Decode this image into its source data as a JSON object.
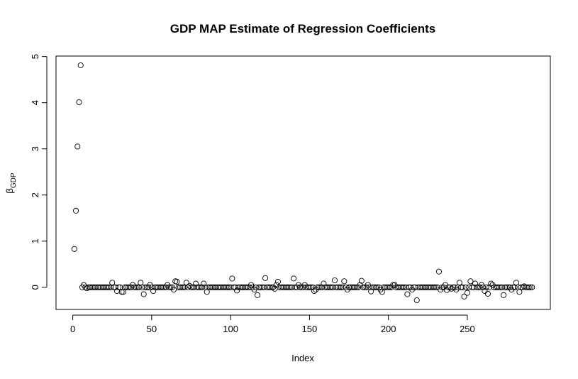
{
  "chart_data": {
    "type": "scatter",
    "title": "GDP MAP Estimate of Regression Coefficients",
    "x_label": "Index",
    "y_label": "β",
    "y_label_subscript": "GDP",
    "color": "#000000",
    "x": [
      1,
      2,
      3,
      4,
      5,
      6,
      7,
      8,
      9,
      10,
      11,
      12,
      13,
      14,
      15,
      16,
      17,
      18,
      19,
      20,
      21,
      22,
      23,
      24,
      25,
      26,
      27,
      28,
      29,
      30,
      31,
      32,
      33,
      34,
      35,
      36,
      37,
      38,
      39,
      40,
      41,
      42,
      43,
      44,
      45,
      46,
      47,
      48,
      49,
      50,
      51,
      52,
      53,
      54,
      55,
      56,
      57,
      58,
      59,
      60,
      61,
      62,
      63,
      64,
      65,
      66,
      67,
      68,
      69,
      70,
      71,
      72,
      73,
      74,
      75,
      76,
      77,
      78,
      79,
      80,
      81,
      82,
      83,
      84,
      85,
      86,
      87,
      88,
      89,
      90,
      91,
      92,
      93,
      94,
      95,
      96,
      97,
      98,
      99,
      100,
      101,
      102,
      103,
      104,
      105,
      106,
      107,
      108,
      109,
      110,
      111,
      112,
      113,
      114,
      115,
      116,
      117,
      118,
      119,
      120,
      121,
      122,
      123,
      124,
      125,
      126,
      127,
      128,
      129,
      130,
      131,
      132,
      133,
      134,
      135,
      136,
      137,
      138,
      139,
      140,
      141,
      142,
      143,
      144,
      145,
      146,
      147,
      148,
      149,
      150,
      151,
      152,
      153,
      154,
      155,
      156,
      157,
      158,
      159,
      160,
      161,
      162,
      163,
      164,
      165,
      166,
      167,
      168,
      169,
      170,
      171,
      172,
      173,
      174,
      175,
      176,
      177,
      178,
      179,
      180,
      181,
      182,
      183,
      184,
      185,
      186,
      187,
      188,
      189,
      190,
      191,
      192,
      193,
      194,
      195,
      196,
      197,
      198,
      199,
      200,
      201,
      202,
      203,
      204,
      205,
      206,
      207,
      208,
      209,
      210,
      211,
      212,
      213,
      214,
      215,
      216,
      217,
      218,
      219,
      220,
      221,
      222,
      223,
      224,
      225,
      226,
      227,
      228,
      229,
      230,
      231,
      232,
      233,
      234,
      235,
      236,
      237,
      238,
      239,
      240,
      241,
      242,
      243,
      244,
      245,
      246,
      247,
      248,
      249,
      250,
      251,
      252,
      253,
      254,
      255,
      256,
      257,
      258,
      259,
      260,
      261,
      262,
      263,
      264,
      265,
      266,
      267,
      268,
      269,
      270,
      271,
      272,
      273,
      274,
      275,
      276,
      277,
      278,
      279,
      280,
      281,
      282,
      283,
      284,
      285,
      286,
      287,
      288,
      289,
      290,
      291
    ],
    "values": [
      0.83,
      1.66,
      3.05,
      4.01,
      4.81,
      0,
      0.05,
      0,
      -0.02,
      0,
      0,
      0,
      0,
      0,
      0,
      0,
      0,
      0,
      0,
      0,
      0,
      0,
      0,
      0,
      0.1,
      0,
      0,
      -0.08,
      0,
      0,
      -0.1,
      -0.1,
      0,
      0,
      0,
      0,
      0,
      0.05,
      0,
      0,
      0,
      0,
      0.1,
      0,
      -0.15,
      0,
      0,
      0,
      0.05,
      0,
      -0.08,
      0,
      0,
      0,
      0,
      0,
      0,
      0,
      0,
      0.05,
      0,
      0,
      0,
      -0.05,
      0.13,
      0.12,
      0,
      0,
      0,
      0,
      0,
      0.1,
      0,
      0.03,
      0,
      0,
      0,
      0.08,
      0,
      0,
      0,
      0,
      0.08,
      0,
      -0.1,
      0,
      0,
      0,
      0,
      0,
      0,
      0,
      0,
      0,
      0,
      0,
      0,
      0,
      0,
      0,
      0.19,
      0,
      0,
      -0.07,
      0,
      0,
      0,
      0,
      0,
      0,
      0,
      0,
      0.05,
      0,
      -0.05,
      0,
      -0.17,
      0,
      0,
      0,
      0,
      0.2,
      0,
      0,
      0,
      0,
      0,
      -0.03,
      0.05,
      0.12,
      0,
      0,
      0,
      0,
      0,
      0,
      0,
      0,
      0,
      0.19,
      0,
      0,
      0.05,
      0,
      0,
      0,
      0.05,
      0,
      0,
      0,
      0,
      0,
      -0.08,
      -0.05,
      0,
      0,
      0,
      0,
      0.08,
      0,
      0,
      0,
      0,
      0,
      0,
      0.15,
      0,
      0,
      0,
      0,
      0,
      0.13,
      0,
      -0.05,
      0,
      0,
      0,
      0,
      0,
      0,
      0,
      0.05,
      0.14,
      0,
      0,
      0,
      0.05,
      0,
      -0.09,
      0,
      0,
      0,
      0,
      0,
      -0.05,
      -0.1,
      0,
      0,
      0,
      0,
      0,
      0,
      0.05,
      0.05,
      0,
      0,
      0,
      0,
      0,
      0,
      0,
      -0.15,
      0,
      0,
      -0.05,
      0,
      0,
      -0.28,
      0,
      0,
      0,
      0,
      0,
      0,
      0,
      0,
      0,
      0,
      0,
      0,
      0,
      0.34,
      -0.05,
      0,
      0,
      0.05,
      -0.06,
      0,
      0,
      -0.03,
      0,
      0,
      -0.05,
      0,
      0.1,
      0,
      0,
      -0.2,
      0,
      -0.12,
      0,
      0.13,
      0,
      0,
      0.08,
      0,
      0,
      0,
      0.05,
      0,
      -0.08,
      0,
      -0.14,
      0,
      0.08,
      0.05,
      0,
      0,
      0,
      0,
      0,
      0,
      -0.17,
      0,
      0,
      0,
      0,
      -0.05,
      0,
      0,
      0.1,
      0,
      -0.1,
      0,
      0,
      0.02,
      0,
      0,
      0,
      0,
      0
    ],
    "xlim": [
      -10.6,
      302.6
    ],
    "ylim": [
      -0.48,
      5.01
    ],
    "xticks": [
      0,
      50,
      100,
      150,
      200,
      250
    ],
    "yticks": [
      0,
      1,
      2,
      3,
      4,
      5
    ],
    "grid": false
  }
}
